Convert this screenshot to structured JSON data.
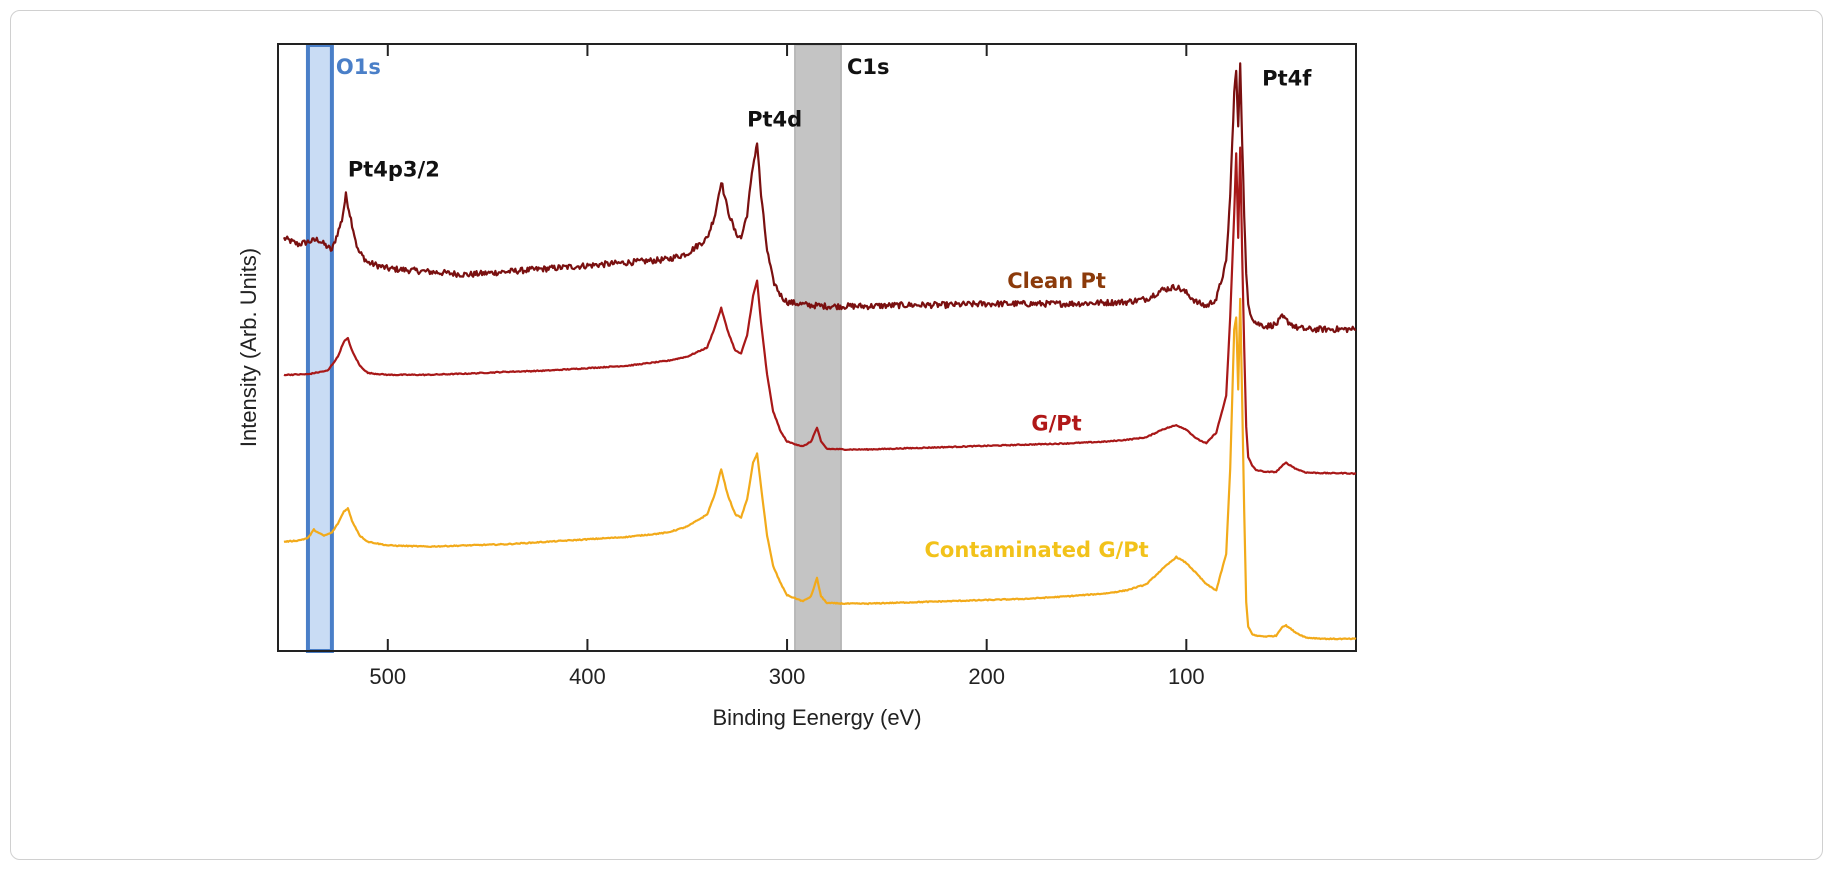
{
  "chart_data": {
    "type": "line",
    "xlabel": "Binding Eenergy (eV)",
    "ylabel": "Intensity (Arb. Units)",
    "xlim": [
      555,
      15
    ],
    "ylim": [
      0,
      10
    ],
    "x_reversed": true,
    "x_ticks": [
      500,
      400,
      300,
      200,
      100
    ],
    "x_tick_labels": [
      "500",
      "400",
      "300",
      "200",
      "100"
    ],
    "y_ticks_shown": false,
    "grid": false,
    "highlight_bands": [
      {
        "label": "O1s",
        "x_from": 540,
        "x_to": 528,
        "fill": "#c9dcf4",
        "stroke": "#4a7fc8",
        "label_color": "#4a7fc8"
      },
      {
        "label": "C1s",
        "x_from": 296,
        "x_to": 273,
        "fill": "#c4c4c4",
        "stroke": "#b8b8b8",
        "label_color": "#111111"
      }
    ],
    "annotations": [
      {
        "text": "Pt4p3/2",
        "x": 520,
        "y": 7.82
      },
      {
        "text": "Pt4d",
        "x": 320,
        "y": 8.64
      },
      {
        "text": "Pt4f",
        "x": 62,
        "y": 9.32
      }
    ],
    "series": [
      {
        "name": "Clean Pt",
        "color": "#7a1010",
        "label_color": "#8b3a0a",
        "label_x": 165,
        "label_y": 5.98,
        "noise": 0.05,
        "x": [
          552,
          545,
          535,
          528,
          523,
          521,
          519,
          515,
          510,
          500,
          480,
          460,
          440,
          420,
          400,
          380,
          360,
          350,
          340,
          336,
          333,
          330,
          326,
          323,
          320,
          317,
          315,
          313,
          310,
          307,
          303,
          300,
          290,
          280,
          260,
          240,
          220,
          200,
          180,
          160,
          140,
          130,
          120,
          112,
          105,
          100,
          95,
          90,
          85,
          80,
          78,
          76,
          75,
          74,
          73,
          72,
          71,
          70,
          69,
          67,
          65,
          60,
          55,
          52,
          50,
          45,
          40,
          30,
          20,
          15
        ],
        "y": [
          6.8,
          6.7,
          6.78,
          6.6,
          7.1,
          7.51,
          7.2,
          6.6,
          6.4,
          6.3,
          6.25,
          6.2,
          6.25,
          6.3,
          6.35,
          6.4,
          6.45,
          6.55,
          6.8,
          7.2,
          7.75,
          7.3,
          6.9,
          6.8,
          7.2,
          8.0,
          8.38,
          7.5,
          6.6,
          6.1,
          5.85,
          5.75,
          5.7,
          5.68,
          5.68,
          5.7,
          5.7,
          5.72,
          5.72,
          5.72,
          5.74,
          5.75,
          5.8,
          5.95,
          6.0,
          5.9,
          5.75,
          5.68,
          5.8,
          6.4,
          7.5,
          9.2,
          9.55,
          8.6,
          9.7,
          8.4,
          7.2,
          6.2,
          5.7,
          5.5,
          5.4,
          5.35,
          5.38,
          5.5,
          5.45,
          5.33,
          5.3,
          5.3,
          5.3,
          5.3
        ]
      },
      {
        "name": "G/Pt",
        "color": "#a81818",
        "label_color": "#b01818",
        "label_x": 165,
        "label_y": 3.63,
        "noise": 0.008,
        "x": [
          552,
          540,
          530,
          525,
          522,
          520,
          518,
          514,
          510,
          500,
          480,
          460,
          440,
          420,
          400,
          380,
          360,
          350,
          340,
          336,
          333,
          330,
          326,
          323,
          320,
          317,
          315,
          313,
          310,
          307,
          303,
          300,
          292,
          288,
          285,
          283,
          280,
          270,
          260,
          240,
          220,
          200,
          180,
          160,
          140,
          130,
          120,
          112,
          105,
          100,
          95,
          90,
          85,
          80,
          78,
          76,
          75,
          74,
          73,
          72,
          71,
          70,
          69,
          67,
          65,
          60,
          55,
          52,
          50,
          45,
          40,
          30,
          20,
          15
        ],
        "y": [
          4.55,
          4.56,
          4.62,
          4.85,
          5.1,
          5.15,
          4.95,
          4.7,
          4.58,
          4.55,
          4.55,
          4.57,
          4.6,
          4.62,
          4.66,
          4.7,
          4.78,
          4.85,
          5.0,
          5.35,
          5.65,
          5.3,
          4.95,
          4.9,
          5.2,
          5.85,
          6.1,
          5.4,
          4.55,
          3.95,
          3.6,
          3.45,
          3.37,
          3.45,
          3.68,
          3.45,
          3.33,
          3.32,
          3.32,
          3.34,
          3.36,
          3.38,
          3.4,
          3.42,
          3.45,
          3.48,
          3.52,
          3.65,
          3.72,
          3.65,
          3.5,
          3.42,
          3.6,
          4.2,
          5.5,
          7.2,
          8.2,
          6.8,
          8.3,
          6.5,
          5.0,
          3.7,
          3.2,
          3.05,
          2.98,
          2.95,
          2.95,
          3.05,
          3.1,
          3.0,
          2.94,
          2.93,
          2.93,
          2.92
        ]
      },
      {
        "name": "Contaminated G/Pt",
        "color": "#f2aa1a",
        "label_color": "#f2c21a",
        "label_x": 175,
        "label_y": 1.55,
        "noise": 0.008,
        "x": [
          552,
          545,
          540,
          537,
          535,
          532,
          528,
          525,
          522,
          520,
          518,
          514,
          510,
          500,
          480,
          460,
          440,
          420,
          400,
          380,
          360,
          350,
          340,
          336,
          333,
          330,
          326,
          323,
          320,
          317,
          315,
          313,
          310,
          307,
          303,
          300,
          292,
          288,
          285,
          283,
          280,
          270,
          260,
          240,
          220,
          200,
          180,
          160,
          140,
          130,
          120,
          112,
          105,
          100,
          95,
          90,
          85,
          80,
          78,
          76,
          75,
          74,
          73,
          72,
          71,
          70,
          69,
          67,
          65,
          60,
          55,
          52,
          50,
          45,
          40,
          30,
          20,
          15
        ],
        "y": [
          1.8,
          1.82,
          1.86,
          2.0,
          1.95,
          1.9,
          1.95,
          2.1,
          2.3,
          2.35,
          2.15,
          1.9,
          1.8,
          1.74,
          1.72,
          1.74,
          1.76,
          1.8,
          1.84,
          1.88,
          1.95,
          2.05,
          2.25,
          2.6,
          3.0,
          2.6,
          2.25,
          2.2,
          2.5,
          3.1,
          3.25,
          2.7,
          1.9,
          1.4,
          1.1,
          0.92,
          0.82,
          0.9,
          1.2,
          0.9,
          0.79,
          0.78,
          0.78,
          0.8,
          0.82,
          0.84,
          0.86,
          0.9,
          0.95,
          1.0,
          1.1,
          1.35,
          1.55,
          1.45,
          1.28,
          1.1,
          1.0,
          1.6,
          3.0,
          5.3,
          5.5,
          4.3,
          5.8,
          4.1,
          2.3,
          0.8,
          0.4,
          0.28,
          0.25,
          0.24,
          0.25,
          0.4,
          0.42,
          0.3,
          0.22,
          0.2,
          0.2,
          0.2
        ]
      }
    ]
  }
}
